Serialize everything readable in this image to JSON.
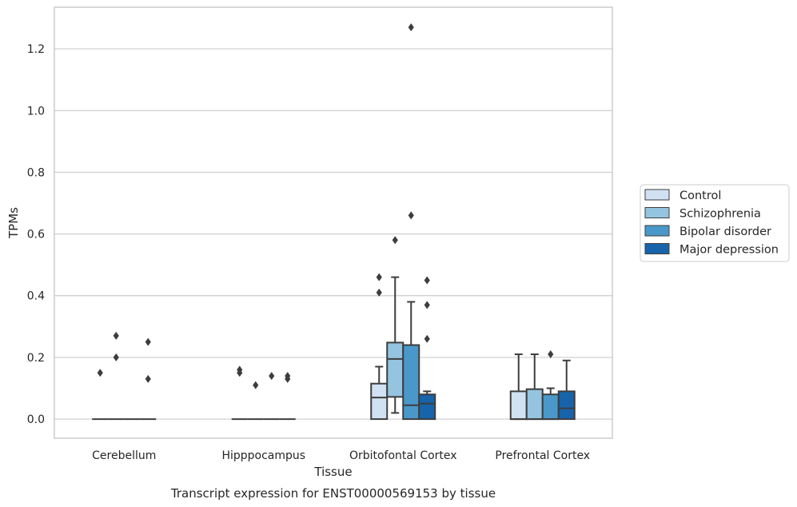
{
  "chart_data": {
    "type": "box",
    "title": "Transcript expression for ENST00000569153 by tissue",
    "xlabel": "Tissue",
    "ylabel": "TPMs",
    "ylim": [
      -0.062,
      1.335
    ],
    "yticks": [
      "0.0",
      "0.2",
      "0.4",
      "0.6",
      "0.8",
      "1.0",
      "1.2"
    ],
    "ytick_values": [
      0,
      0.2,
      0.4,
      0.6,
      0.8,
      1.0,
      1.2
    ],
    "grid": "horizontal",
    "legend_position": "right",
    "categories": [
      "Cerebellum",
      "Hipppocampus",
      "Orbitofontal Cortex",
      "Prefrontal Cortex"
    ],
    "series": [
      {
        "name": "Control",
        "color": "#d0e1f2",
        "boxes": [
          {
            "whislo": 0,
            "q1": 0,
            "med": 0,
            "q3": 0,
            "whishi": 0,
            "fliers": [
              0.15
            ]
          },
          {
            "whislo": 0,
            "q1": 0,
            "med": 0,
            "q3": 0,
            "whishi": 0,
            "fliers": [
              0.15,
              0.16
            ]
          },
          {
            "whislo": 0,
            "q1": 0,
            "med": 0.07,
            "q3": 0.115,
            "whishi": 0.17,
            "fliers": [
              0.41,
              0.46
            ]
          },
          {
            "whislo": 0,
            "q1": 0,
            "med": 0,
            "q3": 0.09,
            "whishi": 0.21,
            "fliers": []
          }
        ]
      },
      {
        "name": "Schizophrenia",
        "color": "#94c4df",
        "boxes": [
          {
            "whislo": 0,
            "q1": 0,
            "med": 0,
            "q3": 0,
            "whishi": 0,
            "fliers": [
              0.2,
              0.27
            ]
          },
          {
            "whislo": 0,
            "q1": 0,
            "med": 0,
            "q3": 0,
            "whishi": 0,
            "fliers": [
              0.11
            ]
          },
          {
            "whislo": 0.02,
            "q1": 0.072,
            "med": 0.195,
            "q3": 0.248,
            "whishi": 0.46,
            "fliers": [
              0.58
            ]
          },
          {
            "whislo": 0,
            "q1": 0,
            "med": 0,
            "q3": 0.097,
            "whishi": 0.21,
            "fliers": []
          }
        ]
      },
      {
        "name": "Bipolar disorder",
        "color": "#4a98c9",
        "boxes": [
          {
            "whislo": 0,
            "q1": 0,
            "med": 0,
            "q3": 0,
            "whishi": 0,
            "fliers": []
          },
          {
            "whislo": 0,
            "q1": 0,
            "med": 0,
            "q3": 0,
            "whishi": 0,
            "fliers": [
              0.14
            ]
          },
          {
            "whislo": 0,
            "q1": 0,
            "med": 0.045,
            "q3": 0.24,
            "whishi": 0.38,
            "fliers": [
              0.66,
              1.27
            ]
          },
          {
            "whislo": 0,
            "q1": 0,
            "med": 0,
            "q3": 0.08,
            "whishi": 0.1,
            "fliers": [
              0.21
            ]
          }
        ]
      },
      {
        "name": "Major depression",
        "color": "#1764ab",
        "boxes": [
          {
            "whislo": 0,
            "q1": 0,
            "med": 0,
            "q3": 0,
            "whishi": 0,
            "fliers": [
              0.13,
              0.25
            ]
          },
          {
            "whislo": 0,
            "q1": 0,
            "med": 0,
            "q3": 0,
            "whishi": 0,
            "fliers": [
              0.13,
              0.14
            ]
          },
          {
            "whislo": 0,
            "q1": 0,
            "med": 0.05,
            "q3": 0.08,
            "whishi": 0.09,
            "fliers": [
              0.26,
              0.37,
              0.45
            ]
          },
          {
            "whislo": 0,
            "q1": 0,
            "med": 0.035,
            "q3": 0.09,
            "whishi": 0.19,
            "fliers": []
          }
        ]
      }
    ]
  }
}
